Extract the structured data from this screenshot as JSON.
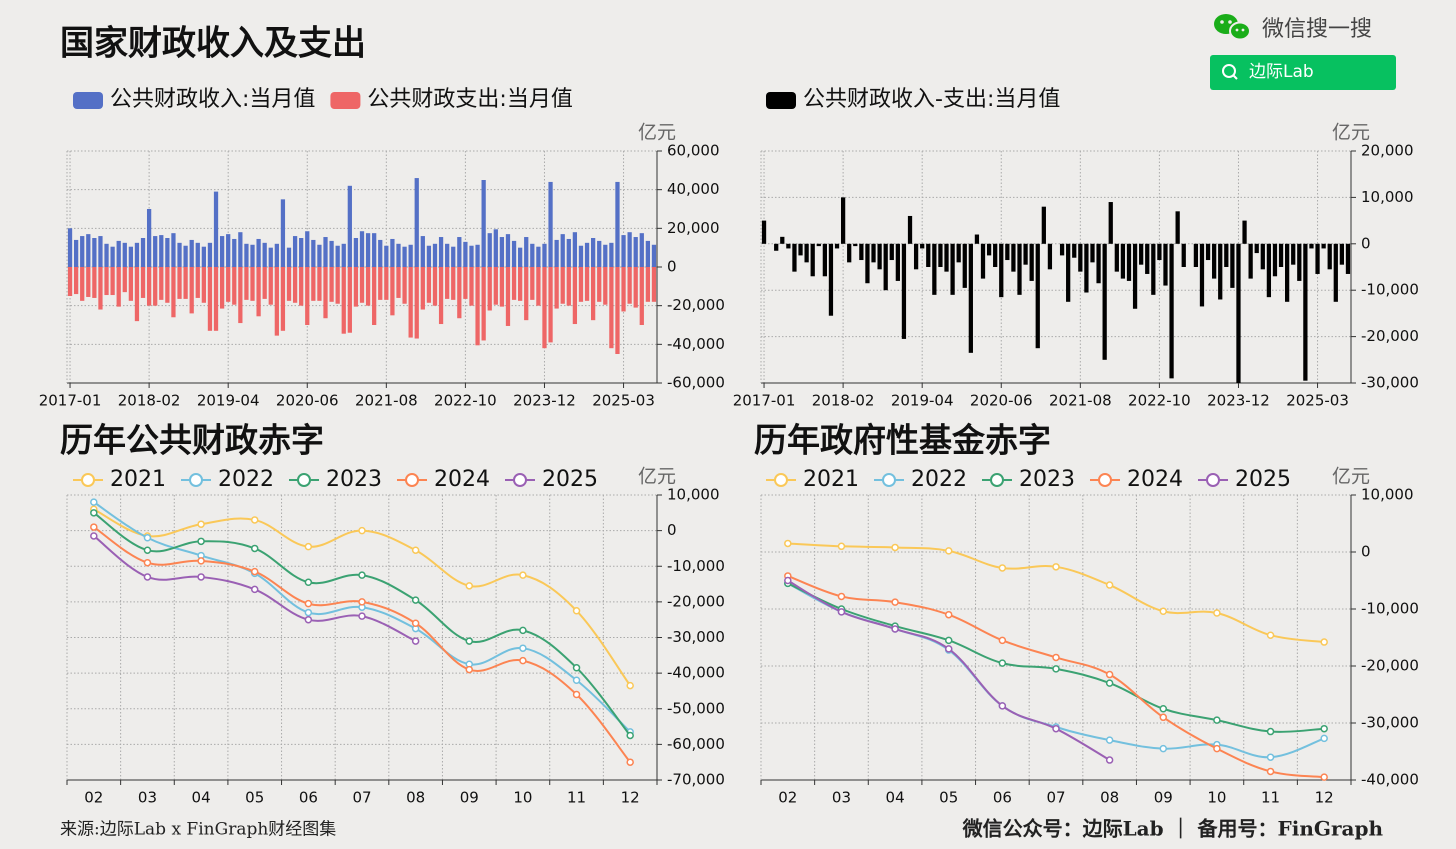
{
  "header": {
    "title": "国家财政收入及支出",
    "brand": "微信搜一搜",
    "search_button": "边际Lab"
  },
  "chart_data": [
    {
      "type": "bar",
      "unit": "亿元",
      "categories": [
        "2017-01",
        null,
        null,
        null,
        null,
        null,
        null,
        null,
        null,
        null,
        null,
        null,
        null,
        "2018-02",
        null,
        null,
        null,
        null,
        null,
        null,
        null,
        null,
        null,
        null,
        null,
        null,
        "2019-04",
        null,
        null,
        null,
        null,
        null,
        null,
        null,
        null,
        null,
        null,
        null,
        null,
        "2020-06",
        null,
        null,
        null,
        null,
        null,
        null,
        null,
        null,
        null,
        null,
        null,
        null,
        "2021-08",
        null,
        null,
        null,
        null,
        null,
        null,
        null,
        null,
        null,
        null,
        null,
        null,
        "2022-10",
        null,
        null,
        null,
        null,
        null,
        null,
        null,
        null,
        null,
        null,
        null,
        null,
        "2023-12",
        null,
        null,
        null,
        null,
        null,
        null,
        null,
        null,
        null,
        null,
        null,
        null,
        "2025-03",
        null,
        null,
        null,
        null,
        null
      ],
      "series": [
        {
          "name": "公共财政收入:当月值",
          "color": "#5470c6",
          "values": [
            20000,
            14000,
            16000,
            17000,
            15000,
            16000,
            12000,
            10500,
            13500,
            12500,
            10500,
            12500,
            15000,
            30000,
            16000,
            16500,
            15000,
            17500,
            12500,
            11000,
            14000,
            12500,
            10500,
            12500,
            39000,
            16000,
            17000,
            14500,
            18000,
            12000,
            11500,
            14500,
            12500,
            10000,
            12000,
            35000,
            10000,
            16000,
            15000,
            18500,
            14000,
            11500,
            15500,
            13500,
            11000,
            12000,
            42000,
            15000,
            18500,
            17500,
            17500,
            14000,
            11000,
            14500,
            12000,
            10500,
            11500,
            46000,
            16000,
            11000,
            12000,
            15500,
            12000,
            10500,
            15500,
            13000,
            11000,
            11500,
            45000,
            17500,
            19500,
            15500,
            17000,
            13500,
            10000,
            15500,
            12000,
            10500,
            12000,
            44000,
            14000,
            17000,
            14500,
            18000,
            11000,
            12500,
            15000,
            13500,
            11500,
            12500,
            44000,
            16500,
            18000,
            15500,
            17500,
            13500,
            11500
          ]
        },
        {
          "name": "公共财政支出:当月值",
          "color": "#ee6666",
          "values": [
            -15000,
            -14000,
            -17500,
            -15500,
            -16000,
            -22000,
            -14500,
            -14500,
            -20500,
            -13000,
            -17500,
            -28000,
            -16000,
            -20000,
            -20000,
            -17000,
            -18500,
            -26000,
            -16500,
            -16500,
            -24000,
            -16000,
            -18500,
            -33000,
            -33000,
            -21500,
            -18000,
            -19500,
            -29000,
            -17000,
            -17500,
            -25500,
            -16500,
            -19500,
            -35500,
            -33000,
            -17500,
            -18500,
            -20000,
            -30000,
            -17500,
            -17500,
            -26500,
            -18000,
            -19000,
            -34500,
            -34000,
            -20500,
            -18500,
            -20000,
            -30000,
            -17000,
            -17000,
            -25000,
            -16000,
            -19000,
            -36500,
            -37000,
            -22000,
            -18500,
            -20000,
            -29500,
            -16500,
            -17000,
            -26500,
            -16500,
            -20000,
            -40500,
            -38000,
            -22500,
            -19500,
            -20500,
            -30500,
            -17000,
            -17500,
            -27500,
            -17000,
            -20000,
            -42000,
            -39000,
            -21500,
            -19000,
            -20000,
            -29500,
            -18000,
            -17500,
            -27500,
            -18000,
            -19500,
            -42000,
            -45000,
            -23000,
            -19000,
            -21000,
            -30000,
            -18000,
            -18000
          ]
        }
      ],
      "ylim": [
        -60000,
        60000
      ],
      "yticks": [
        {
          "value": 60000,
          "label": "60,000"
        },
        {
          "value": 40000,
          "label": "40,000"
        },
        {
          "value": 20000,
          "label": "20,000"
        },
        0,
        {
          "value": -20000,
          "label": "-20,000"
        },
        {
          "value": -40000,
          "label": "-40,000"
        },
        {
          "value": -60000,
          "label": "-60,000"
        }
      ],
      "grid": true,
      "legend": "top-left"
    },
    {
      "type": "bar",
      "unit": "亿元",
      "categories": [
        "2017-01",
        null,
        null,
        null,
        null,
        null,
        null,
        null,
        null,
        null,
        null,
        null,
        null,
        "2018-02",
        null,
        null,
        null,
        null,
        null,
        null,
        null,
        null,
        null,
        null,
        null,
        null,
        "2019-04",
        null,
        null,
        null,
        null,
        null,
        null,
        null,
        null,
        null,
        null,
        null,
        null,
        "2020-06",
        null,
        null,
        null,
        null,
        null,
        null,
        null,
        null,
        null,
        null,
        null,
        null,
        "2021-08",
        null,
        null,
        null,
        null,
        null,
        null,
        null,
        null,
        null,
        null,
        null,
        null,
        "2022-10",
        null,
        null,
        null,
        null,
        null,
        null,
        null,
        null,
        null,
        null,
        null,
        null,
        "2023-12",
        null,
        null,
        null,
        null,
        null,
        null,
        null,
        null,
        null,
        null,
        null,
        null,
        "2025-03",
        null,
        null,
        null,
        null,
        null
      ],
      "series": [
        {
          "name": "公共财政收入-支出:当月值",
          "color": "#000000",
          "values": [
            5000,
            0,
            -1500,
            1500,
            -1000,
            -6000,
            -2500,
            -4000,
            -7000,
            -500,
            -7000,
            -15500,
            -1000,
            10000,
            -4000,
            -500,
            -3500,
            -8500,
            -4000,
            -5500,
            -10000,
            -3500,
            -8000,
            -20500,
            6000,
            -5500,
            -1000,
            -5000,
            -11000,
            -5000,
            -6000,
            -11000,
            -4000,
            -9500,
            -23500,
            2000,
            -7500,
            -2500,
            -5000,
            -11500,
            -3500,
            -6000,
            -11000,
            -4500,
            -8000,
            -22500,
            8000,
            -5500,
            0,
            -2500,
            -12500,
            -3000,
            -6000,
            -10500,
            -4000,
            -8500,
            -25000,
            9000,
            -6000,
            -7500,
            -8000,
            -14000,
            -4500,
            -6500,
            -11000,
            -3500,
            -9000,
            -29000,
            7000,
            -5000,
            0,
            -5000,
            -13500,
            -3500,
            -7500,
            -12000,
            -5000,
            -9500,
            -30000,
            5000,
            -7500,
            -2000,
            -5500,
            -11500,
            -7000,
            -5000,
            -12500,
            -4500,
            -8000,
            -29500,
            -1000,
            -6500,
            -1000,
            -5500,
            -12500,
            -4500,
            -6500
          ]
        }
      ],
      "ylim": [
        -30000,
        20000
      ],
      "yticks": [
        {
          "value": 20000,
          "label": "20,000"
        },
        {
          "value": 10000,
          "label": "10,000"
        },
        0,
        {
          "value": -10000,
          "label": "-10,000"
        },
        {
          "value": -20000,
          "label": "-20,000"
        },
        {
          "value": -30000,
          "label": "-30,000"
        }
      ],
      "grid": true,
      "legend": "top-left"
    },
    {
      "type": "line",
      "title": "历年公共财政赤字",
      "unit": "亿元",
      "categories": [
        "02",
        "03",
        "04",
        "05",
        "06",
        "07",
        "08",
        "09",
        "10",
        "11",
        "12"
      ],
      "series": [
        {
          "name": "2021",
          "color": "#fac858",
          "values": [
            6000,
            -1500,
            1800,
            3000,
            -4500,
            0,
            -5500,
            -15500,
            -12500,
            -22500,
            -43500
          ]
        },
        {
          "name": "2022",
          "color": "#73c0de",
          "values": [
            8000,
            -2000,
            -7000,
            -12000,
            -23000,
            -21500,
            -27500,
            -37500,
            -33000,
            -42000,
            -56500
          ]
        },
        {
          "name": "2023",
          "color": "#3ba272",
          "values": [
            5000,
            -5500,
            -3000,
            -5000,
            -14500,
            -12500,
            -19500,
            -31000,
            -28000,
            -38500,
            -57500
          ]
        },
        {
          "name": "2024",
          "color": "#fc8452",
          "values": [
            1000,
            -9000,
            -8500,
            -11500,
            -20500,
            -20000,
            -26000,
            -39000,
            -36500,
            -46000,
            -65000
          ]
        },
        {
          "name": "2025",
          "color": "#9a60b4",
          "values": [
            -1500,
            -13000,
            -13000,
            -16500,
            -25000,
            -24000,
            -31000,
            null,
            null,
            null,
            null
          ]
        }
      ],
      "ylim": [
        -70000,
        10000
      ],
      "yticks": [
        {
          "value": 10000,
          "label": "10,000"
        },
        0,
        {
          "value": -10000,
          "label": "-10,000"
        },
        {
          "value": -20000,
          "label": "-20,000"
        },
        {
          "value": -30000,
          "label": "-30,000"
        },
        {
          "value": -40000,
          "label": "-40,000"
        },
        {
          "value": -50000,
          "label": "-50,000"
        },
        {
          "value": -60000,
          "label": "-60,000"
        },
        {
          "value": -70000,
          "label": "-70,000"
        }
      ],
      "grid": true,
      "smooth": true,
      "legend": "top-left"
    },
    {
      "type": "line",
      "title": "历年政府性基金赤字",
      "unit": "亿元",
      "categories": [
        "02",
        "03",
        "04",
        "05",
        "06",
        "07",
        "08",
        "09",
        "10",
        "11",
        "12"
      ],
      "series": [
        {
          "name": "2021",
          "color": "#fac858",
          "values": [
            1500,
            1000,
            800,
            200,
            -2800,
            -2600,
            -5800,
            -10400,
            -10700,
            -14600,
            -15800
          ]
        },
        {
          "name": "2022",
          "color": "#73c0de",
          "values": [
            -5500,
            -10500,
            -13500,
            -17200,
            -27000,
            -30700,
            -33000,
            -34500,
            -33800,
            -36000,
            -32700
          ]
        },
        {
          "name": "2023",
          "color": "#3ba272",
          "values": [
            -5500,
            -10000,
            -13000,
            -15500,
            -19500,
            -20500,
            -23000,
            -27500,
            -29500,
            -31500,
            -31000
          ]
        },
        {
          "name": "2024",
          "color": "#fc8452",
          "values": [
            -4200,
            -7800,
            -8800,
            -11000,
            -15500,
            -18500,
            -21500,
            -29000,
            -34500,
            -38500,
            -39500
          ]
        },
        {
          "name": "2025",
          "color": "#9a60b4",
          "values": [
            -5000,
            -10500,
            -13500,
            -17000,
            -27000,
            -31000,
            -36500,
            null,
            null,
            null,
            null
          ]
        }
      ],
      "ylim": [
        -40000,
        10000
      ],
      "yticks": [
        {
          "value": 10000,
          "label": "10,000"
        },
        0,
        {
          "value": -10000,
          "label": "-10,000"
        },
        {
          "value": -20000,
          "label": "-20,000"
        },
        {
          "value": -30000,
          "label": "-30,000"
        },
        {
          "value": -40000,
          "label": "-40,000"
        }
      ],
      "grid": true,
      "smooth": true,
      "legend": "top-left"
    }
  ],
  "footer": {
    "source": "来源:边际Lab x FinGraph财经图集",
    "contact": "微信公众号：边际Lab ｜ 备用号：FinGraph"
  }
}
